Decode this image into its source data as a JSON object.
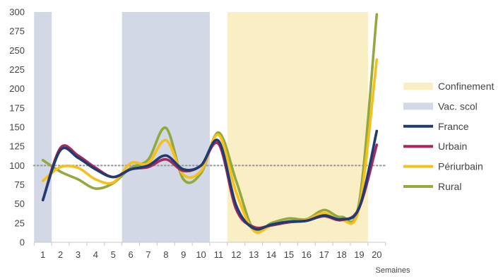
{
  "chart_data": {
    "type": "line",
    "xlabel": "Semaines",
    "ylabel": "",
    "ylim": [
      0,
      300
    ],
    "yticks": [
      0,
      25,
      50,
      75,
      100,
      125,
      150,
      175,
      200,
      225,
      250,
      275,
      300
    ],
    "x": [
      1,
      2,
      3,
      4,
      5,
      6,
      7,
      8,
      9,
      10,
      11,
      12,
      13,
      14,
      15,
      16,
      17,
      18,
      19,
      20
    ],
    "reference_line": {
      "value": 100,
      "style": "dotted",
      "color": "#9a9a9a"
    },
    "shaded_regions": [
      {
        "name": "Vac. scol",
        "from": 0.5,
        "to": 1.5,
        "color": "#d3d8e6"
      },
      {
        "name": "Vac. scol",
        "from": 5.5,
        "to": 10.5,
        "color": "#d3d8e6"
      },
      {
        "name": "Confinement",
        "from": 11.5,
        "to": 19.5,
        "color": "#faefc4"
      }
    ],
    "series": [
      {
        "name": "France",
        "color": "#1f3b73",
        "values": [
          55,
          120,
          110,
          95,
          85,
          95,
          100,
          113,
          95,
          100,
          132,
          48,
          18,
          23,
          27,
          28,
          35,
          30,
          45,
          145
        ]
      },
      {
        "name": "Urbain",
        "color": "#a8275c",
        "values": [
          55,
          123,
          113,
          97,
          85,
          95,
          98,
          108,
          93,
          100,
          128,
          43,
          20,
          22,
          26,
          28,
          34,
          29,
          45,
          127
        ]
      },
      {
        "name": "Périurbain",
        "color": "#f6bf1a",
        "values": [
          80,
          98,
          97,
          82,
          78,
          103,
          103,
          133,
          88,
          93,
          140,
          65,
          15,
          22,
          27,
          29,
          38,
          29,
          45,
          238
        ]
      },
      {
        "name": "Rural",
        "color": "#93a83e",
        "values": [
          107,
          92,
          82,
          70,
          77,
          97,
          108,
          149,
          82,
          90,
          143,
          80,
          16,
          25,
          31,
          30,
          42,
          33,
          52,
          297
        ]
      }
    ],
    "legend": {
      "position": "right",
      "items": [
        {
          "label": "Confinement",
          "kind": "area",
          "color": "#faefc4"
        },
        {
          "label": "Vac. scol",
          "kind": "area",
          "color": "#d3d8e6"
        },
        {
          "label": "France",
          "kind": "line",
          "color": "#1f3b73"
        },
        {
          "label": "Urbain",
          "kind": "line",
          "color": "#a8275c"
        },
        {
          "label": "Périurbain",
          "kind": "line",
          "color": "#f6bf1a"
        },
        {
          "label": "Rural",
          "kind": "line",
          "color": "#93a83e"
        }
      ]
    },
    "grid": false
  }
}
